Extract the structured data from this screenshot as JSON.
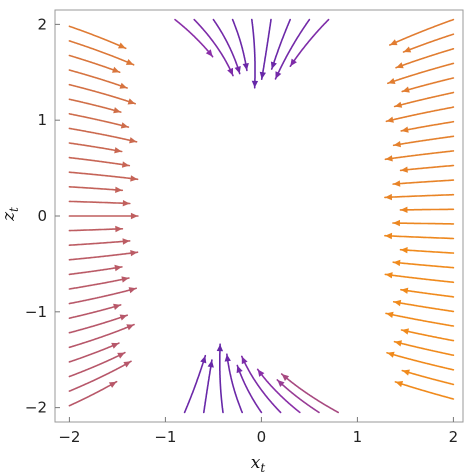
{
  "chart_data": {
    "type": "streamplot",
    "title": "",
    "xlabel": "x",
    "xlabel_sub": "t",
    "ylabel": "z",
    "ylabel_sub": "t",
    "xlim": [
      -2.15,
      2.1
    ],
    "ylim": [
      -2.15,
      2.15
    ],
    "x_ticks": [
      -2,
      -1,
      0,
      1,
      2
    ],
    "y_ticks": [
      -2,
      -1,
      0,
      1,
      2
    ],
    "x_tick_labels": [
      "−2",
      "−1",
      "0",
      "1",
      "2"
    ],
    "y_tick_labels": [
      "−2",
      "−1",
      "0",
      "1",
      "2"
    ],
    "grid": false,
    "field": "dx/dt = -(x + 0.25) + 0.12*z, dz/dt = -0.35*z (streams converge toward x ≈ -0.2 near z ≈ 0)",
    "color_scale": {
      "slow": "#2a1aa8",
      "mid": "#8a2fa8",
      "fast": "#f08a1c"
    }
  }
}
